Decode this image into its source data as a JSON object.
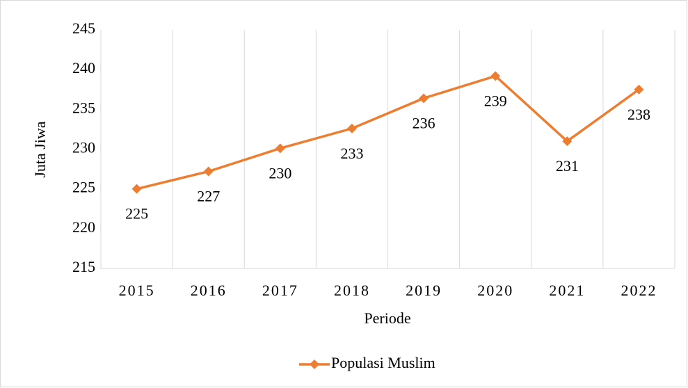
{
  "chart_data": {
    "type": "line",
    "categories": [
      "2015",
      "2016",
      "2017",
      "2018",
      "2019",
      "2020",
      "2021",
      "2022"
    ],
    "series": [
      {
        "name": "Populasi Muslim",
        "color": "#ed7d31",
        "values": [
          225.0,
          227.2,
          230.1,
          232.6,
          236.4,
          239.2,
          231.0,
          237.5
        ],
        "value_labels": [
          "225",
          "227",
          "230",
          "233",
          "236",
          "239",
          "231",
          "238"
        ]
      }
    ],
    "x_label": "Periode",
    "y_label": "Juta Jiwa",
    "ylim": [
      215,
      245
    ],
    "yticks": [
      215,
      220,
      225,
      230,
      235,
      240,
      245
    ],
    "grid": "x",
    "legend": "bottom"
  }
}
